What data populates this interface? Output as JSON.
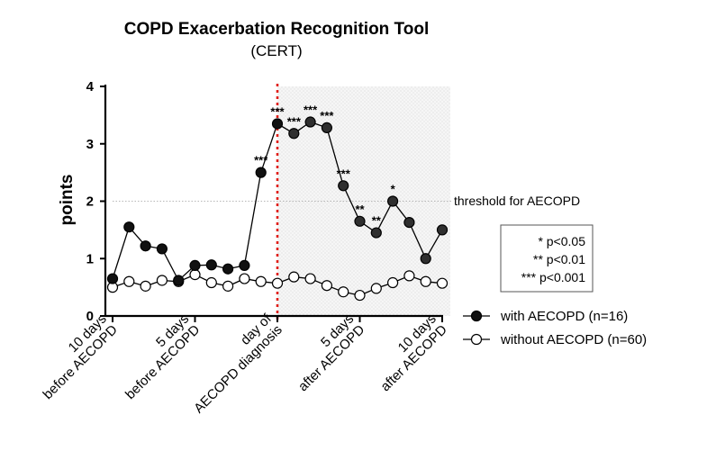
{
  "chart_data": {
    "type": "line",
    "title": "COPD Exacerbation Recognition Tool",
    "subtitle": "(CERT)",
    "ylabel": "points",
    "ylim": [
      0,
      4
    ],
    "yticks": [
      "0",
      "1",
      "2",
      "3",
      "4"
    ],
    "xlim": [
      -10,
      10
    ],
    "xticks": [
      {
        "x": -10,
        "lines": [
          "10 days",
          "before AECOPD"
        ],
        "color": "#000000"
      },
      {
        "x": -5,
        "lines": [
          "5 days",
          "before AECOPD"
        ],
        "color": "#000000"
      },
      {
        "x": 0,
        "lines": [
          "day of",
          "AECOPD diagnosis"
        ],
        "color": "#e0201b"
      },
      {
        "x": 5,
        "lines": [
          "5 days",
          "after AECOPD"
        ],
        "color": "#000000"
      },
      {
        "x": 10,
        "lines": [
          "10 days",
          "after AECOPD"
        ],
        "color": "#000000"
      }
    ],
    "threshold": {
      "value": 2,
      "label": "threshold for AECOPD"
    },
    "diagnosis_day_x": 0,
    "series": [
      {
        "name": "with AECOPD (n=16)",
        "fill": "#111111",
        "x": [
          -10,
          -9,
          -8,
          -7,
          -6,
          -5,
          -4,
          -3,
          -2,
          -1,
          0,
          1,
          2,
          3,
          4,
          5,
          6,
          7,
          8,
          9,
          10
        ],
        "values": [
          0.65,
          1.55,
          1.22,
          1.17,
          0.62,
          0.88,
          0.89,
          0.82,
          0.88,
          2.5,
          3.35,
          3.18,
          3.38,
          3.28,
          2.27,
          1.65,
          1.45,
          2.0,
          1.63,
          1.0,
          1.5
        ]
      },
      {
        "name": "without AECOPD (n=60)",
        "fill": "#ffffff",
        "x": [
          -10,
          -9,
          -8,
          -7,
          -6,
          -5,
          -4,
          -3,
          -2,
          -1,
          0,
          1,
          2,
          3,
          4,
          5,
          6,
          7,
          8,
          9,
          10
        ],
        "values": [
          0.5,
          0.6,
          0.52,
          0.62,
          0.6,
          0.72,
          0.58,
          0.52,
          0.65,
          0.6,
          0.57,
          0.68,
          0.65,
          0.53,
          0.42,
          0.36,
          0.48,
          0.58,
          0.7,
          0.6,
          0.57
        ]
      }
    ],
    "significance": [
      {
        "x": -1,
        "label": "***"
      },
      {
        "x": 0,
        "label": "***"
      },
      {
        "x": 1,
        "label": "***"
      },
      {
        "x": 2,
        "label": "***"
      },
      {
        "x": 3,
        "label": "***"
      },
      {
        "x": 4,
        "label": "***"
      },
      {
        "x": 5,
        "label": "**"
      },
      {
        "x": 6,
        "label": "**"
      },
      {
        "x": 7,
        "label": "*"
      }
    ],
    "significance_legend": [
      "* p<0.05",
      "** p<0.01",
      "*** p<0.001"
    ],
    "legend": [
      "with AECOPD (n=16)",
      "without AECOPD (n=60)"
    ]
  }
}
